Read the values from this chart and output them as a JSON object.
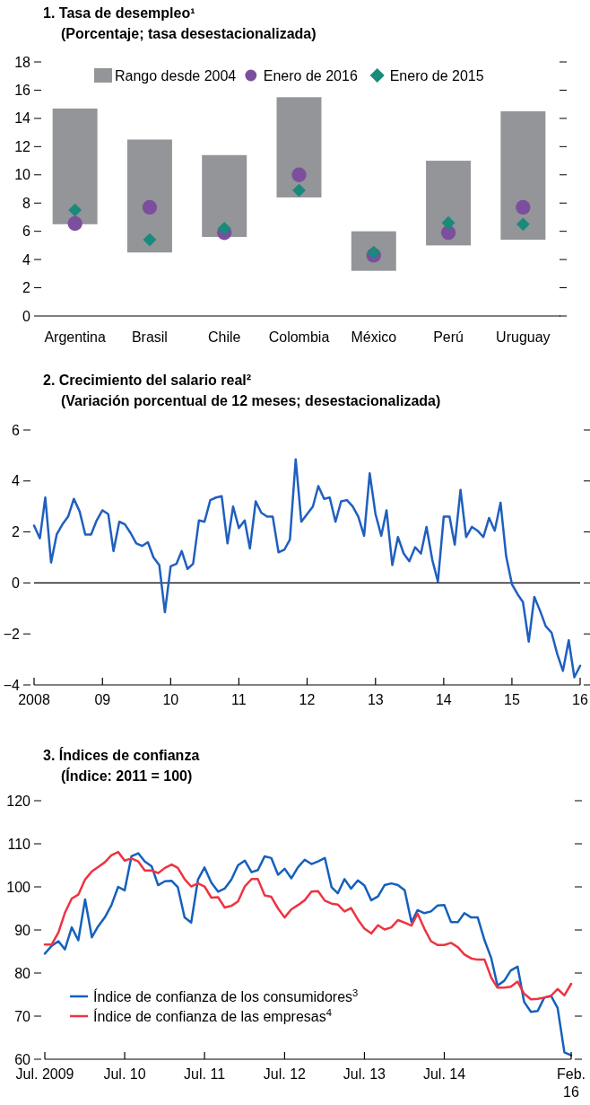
{
  "chart_data": [
    {
      "type": "bar",
      "title": "1. Tasa de desempleo¹",
      "subtitle": "(Porcentaje; tasa desestacionalizada)",
      "categories": [
        "Argentina",
        "Brasil",
        "Chile",
        "Colombia",
        "México",
        "Perú",
        "Uruguay"
      ],
      "series": [
        {
          "name": "Rango desde 2004",
          "color": "#939598",
          "base": [
            6.5,
            4.5,
            5.6,
            8.4,
            3.2,
            5.0,
            5.4
          ],
          "values": [
            8.2,
            8.0,
            5.8,
            7.1,
            2.8,
            6.0,
            9.1
          ]
        },
        {
          "type": "scatter",
          "name": "Enero de 2016",
          "color": "#7b4f9d",
          "marker": "circle",
          "values": [
            6.55,
            7.7,
            5.9,
            10.0,
            4.3,
            5.9,
            7.7
          ]
        },
        {
          "type": "scatter",
          "name": "Enero de 2015",
          "color": "#1a8a7a",
          "marker": "diamond",
          "values": [
            7.5,
            5.4,
            6.2,
            8.9,
            4.5,
            6.6,
            6.5
          ]
        }
      ],
      "ylim": [
        0,
        18
      ],
      "yticks": [
        0,
        2,
        4,
        6,
        8,
        10,
        12,
        14,
        16,
        18
      ],
      "legend": "top"
    },
    {
      "type": "line",
      "title": "2. Crecimiento del salario real²",
      "subtitle": "(Variación porcentual de 12 meses; desestacionalizada)",
      "x": [
        "2008-01",
        "2008-02",
        "2008-03",
        "2008-04",
        "2008-05",
        "2008-06",
        "2008-07",
        "2008-08",
        "2008-09",
        "2008-10",
        "2008-11",
        "2008-12",
        "2009-01",
        "2009-02",
        "2009-03",
        "2009-04",
        "2009-05",
        "2009-06",
        "2009-07",
        "2009-08",
        "2009-09",
        "2009-10",
        "2009-11",
        "2009-12",
        "2010-01",
        "2010-02",
        "2010-03",
        "2010-04",
        "2010-05",
        "2010-06",
        "2010-07",
        "2010-08",
        "2010-09",
        "2010-10",
        "2010-11",
        "2010-12",
        "2011-01",
        "2011-02",
        "2011-03",
        "2011-04",
        "2011-05",
        "2011-06",
        "2011-07",
        "2011-08",
        "2011-09",
        "2011-10",
        "2011-11",
        "2011-12",
        "2012-01",
        "2012-02",
        "2012-03",
        "2012-04",
        "2012-05",
        "2012-06",
        "2012-07",
        "2012-08",
        "2012-09",
        "2012-10",
        "2012-11",
        "2012-12",
        "2013-01",
        "2013-02",
        "2013-03",
        "2013-04",
        "2013-05",
        "2013-06",
        "2013-07",
        "2013-08",
        "2013-09",
        "2013-10",
        "2013-11",
        "2013-12",
        "2014-01",
        "2014-02",
        "2014-03",
        "2014-04",
        "2014-05",
        "2014-06",
        "2014-07",
        "2014-08",
        "2014-09",
        "2014-10",
        "2014-11",
        "2014-12",
        "2015-01",
        "2015-02",
        "2015-03",
        "2015-04",
        "2015-05",
        "2015-06",
        "2015-07",
        "2015-08",
        "2015-09",
        "2015-10",
        "2015-11",
        "2015-12",
        "2016-01"
      ],
      "series": [
        {
          "color": "#1f5fbf",
          "values": [
            2.25,
            1.75,
            3.35,
            0.8,
            1.9,
            2.3,
            2.6,
            3.3,
            2.8,
            1.9,
            1.9,
            2.45,
            2.85,
            2.7,
            1.25,
            2.4,
            2.3,
            1.95,
            1.55,
            1.45,
            1.6,
            1.0,
            0.7,
            -1.15,
            0.65,
            0.75,
            1.25,
            0.55,
            0.75,
            2.45,
            2.4,
            3.25,
            3.35,
            3.4,
            1.55,
            3.0,
            2.15,
            2.45,
            1.35,
            3.2,
            2.75,
            2.6,
            2.6,
            1.2,
            1.3,
            1.7,
            4.85,
            2.4,
            2.7,
            3.0,
            3.8,
            3.3,
            3.35,
            2.4,
            3.2,
            3.25,
            3.0,
            2.6,
            1.85,
            4.3,
            2.7,
            1.85,
            2.85,
            0.7,
            1.8,
            1.15,
            0.85,
            1.4,
            1.15,
            2.2,
            0.9,
            0.05,
            2.6,
            2.6,
            1.5,
            3.65,
            1.8,
            2.2,
            2.05,
            1.8,
            2.55,
            2.05,
            3.15,
            1.05,
            -0.05,
            -0.45,
            -0.75,
            -2.3,
            -0.55,
            -1.1,
            -1.7,
            -1.95,
            -2.8,
            -3.45,
            -2.25,
            -3.7,
            -3.25
          ]
        }
      ],
      "xlim": [
        "2008-01",
        "2016-01"
      ],
      "xticks": [
        {
          "value": "2008-01",
          "label": "2008"
        },
        {
          "value": "2009-01",
          "label": "09"
        },
        {
          "value": "2010-01",
          "label": "10"
        },
        {
          "value": "2011-01",
          "label": "11"
        },
        {
          "value": "2012-01",
          "label": "12"
        },
        {
          "value": "2013-01",
          "label": "13"
        },
        {
          "value": "2014-01",
          "label": "14"
        },
        {
          "value": "2015-01",
          "label": "15"
        },
        {
          "value": "2016-01",
          "label": "16"
        }
      ],
      "ylim": [
        -4,
        6
      ],
      "yticks": [
        {
          "value": -4,
          "label": "−4"
        },
        {
          "value": -2,
          "label": "−2"
        },
        0,
        2,
        4,
        6
      ],
      "ref_lines": [
        {
          "axis": "y",
          "value": 0,
          "color": "#000000"
        }
      ]
    },
    {
      "type": "line",
      "title": "3. Índices de confianza",
      "subtitle": "(Índice: 2011 = 100)",
      "x": [
        "2009-07",
        "2009-08",
        "2009-09",
        "2009-10",
        "2009-11",
        "2009-12",
        "2010-01",
        "2010-02",
        "2010-03",
        "2010-04",
        "2010-05",
        "2010-06",
        "2010-07",
        "2010-08",
        "2010-09",
        "2010-10",
        "2010-11",
        "2010-12",
        "2011-01",
        "2011-02",
        "2011-03",
        "2011-04",
        "2011-05",
        "2011-06",
        "2011-07",
        "2011-08",
        "2011-09",
        "2011-10",
        "2011-11",
        "2011-12",
        "2012-01",
        "2012-02",
        "2012-03",
        "2012-04",
        "2012-05",
        "2012-06",
        "2012-07",
        "2012-08",
        "2012-09",
        "2012-10",
        "2012-11",
        "2012-12",
        "2013-01",
        "2013-02",
        "2013-03",
        "2013-04",
        "2013-05",
        "2013-06",
        "2013-07",
        "2013-08",
        "2013-09",
        "2013-10",
        "2013-11",
        "2013-12",
        "2014-01",
        "2014-02",
        "2014-03",
        "2014-04",
        "2014-05",
        "2014-06",
        "2014-07",
        "2014-08",
        "2014-09",
        "2014-10",
        "2014-11",
        "2014-12",
        "2015-01",
        "2015-02",
        "2015-03",
        "2015-04",
        "2015-05",
        "2015-06",
        "2015-07",
        "2015-08",
        "2015-09",
        "2015-10",
        "2015-11",
        "2015-12",
        "2016-01",
        "2016-02"
      ],
      "series": [
        {
          "name": "Índice de confianza de los consumidores$^{3}$",
          "color": "#1560bd",
          "values": [
            84.5,
            86.3,
            87.4,
            85.5,
            90.6,
            87.6,
            97.1,
            88.3,
            90.8,
            92.9,
            95.7,
            100.0,
            99.2,
            107.1,
            107.8,
            105.9,
            104.8,
            100.4,
            101.3,
            101.4,
            99.9,
            92.9,
            91.7,
            101.7,
            104.5,
            101.0,
            98.9,
            99.6,
            101.7,
            105.0,
            106.1,
            103.4,
            103.9,
            107.1,
            106.7,
            102.8,
            104.2,
            102.0,
            104.6,
            106.3,
            105.3,
            105.9,
            106.7,
            99.9,
            98.5,
            101.8,
            99.6,
            101.5,
            100.3,
            96.9,
            97.8,
            100.4,
            100.8,
            100.4,
            99.2,
            91.8,
            94.6,
            93.9,
            94.3,
            95.7,
            95.8,
            91.8,
            91.8,
            93.9,
            92.9,
            92.9,
            87.6,
            83.4,
            77.1,
            78.2,
            80.6,
            81.5,
            73.3,
            71.0,
            71.2,
            74.3,
            74.7,
            71.9,
            61.6,
            60.9
          ]
        },
        {
          "name": "Índice de confianza de las empresas$^{4}$",
          "color": "#ee3342",
          "values": [
            86.6,
            86.6,
            89.4,
            94.0,
            97.3,
            98.2,
            101.7,
            103.6,
            104.6,
            105.7,
            107.3,
            108.1,
            106.1,
            106.6,
            105.9,
            103.8,
            103.8,
            103.2,
            104.4,
            105.2,
            104.4,
            101.8,
            100.1,
            100.8,
            100.1,
            97.5,
            97.6,
            95.2,
            95.6,
            96.6,
            100.1,
            101.8,
            101.8,
            98.0,
            97.7,
            95.0,
            92.9,
            94.8,
            95.8,
            96.9,
            98.9,
            99.0,
            96.8,
            96.1,
            95.9,
            94.3,
            95.1,
            92.4,
            90.3,
            89.2,
            91.1,
            90.1,
            90.6,
            92.3,
            91.7,
            91.0,
            93.8,
            90.3,
            87.4,
            86.5,
            86.5,
            87.0,
            86.0,
            84.3,
            83.4,
            83.1,
            83.1,
            78.9,
            76.6,
            76.6,
            76.8,
            78.0,
            75.2,
            73.9,
            74.0,
            74.3,
            74.7,
            76.3,
            74.8,
            77.5
          ]
        }
      ],
      "xlim": [
        "2009-07",
        "2016-02"
      ],
      "xticks": [
        {
          "value": "2009-07",
          "label": "Jul. 2009"
        },
        {
          "value": "2010-07",
          "label": "Jul. 10"
        },
        {
          "value": "2011-07",
          "label": "Jul. 11"
        },
        {
          "value": "2012-07",
          "label": "Jul. 12"
        },
        {
          "value": "2013-07",
          "label": "Jul. 13"
        },
        {
          "value": "2014-07",
          "label": "Jul. 14"
        },
        {
          "value": "2016-02",
          "label": "Feb. 16"
        }
      ],
      "ylim": [
        60,
        120
      ],
      "yticks": [
        60,
        70,
        80,
        90,
        100,
        110,
        120
      ],
      "legend": "bottom left"
    }
  ]
}
